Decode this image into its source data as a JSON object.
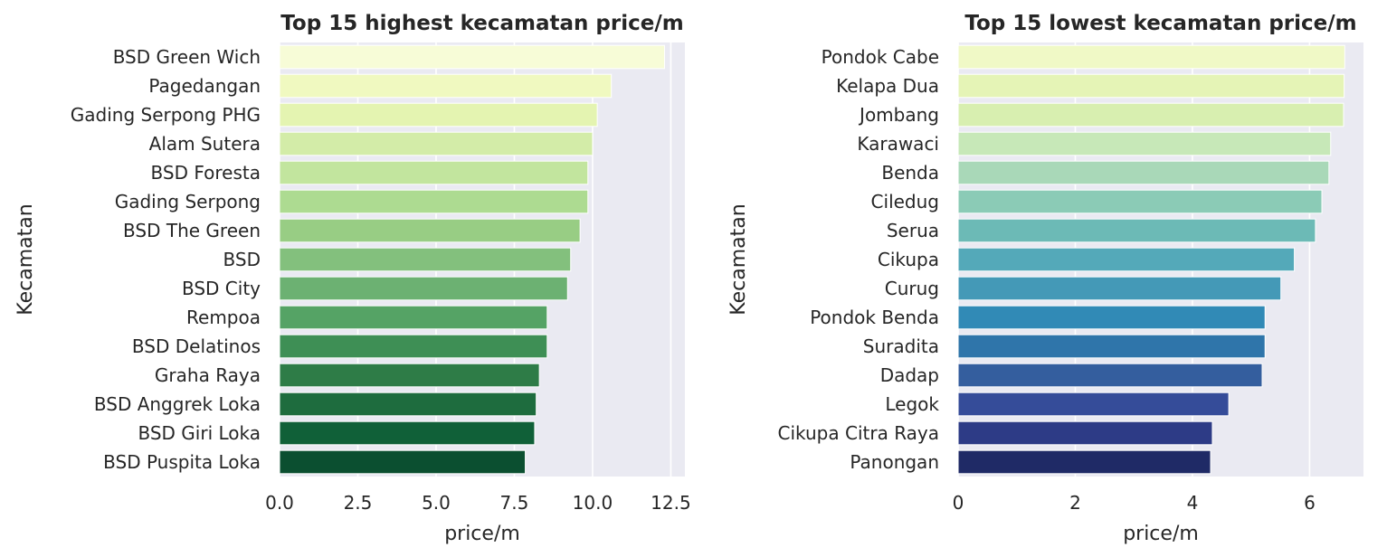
{
  "chart_data": [
    {
      "type": "bar",
      "orientation": "horizontal",
      "title": "Top 15 highest kecamatan price/m",
      "xlabel": "price/m",
      "ylabel": "Kecamatan",
      "xlim": [
        0,
        12.95
      ],
      "xticks": [
        0,
        2.5,
        5,
        7.5,
        10,
        12.5
      ],
      "xtick_labels": [
        "0.0",
        "2.5",
        "5.0",
        "7.5",
        "10.0",
        "12.5"
      ],
      "grid": true,
      "categories": [
        "BSD Green Wich",
        "Pagedangan",
        "Gading Serpong PHG",
        "Alam Sutera",
        "BSD Foresta",
        "Gading Serpong",
        "BSD The Green",
        "BSD",
        "BSD City",
        "Rempoa",
        "BSD Delatinos",
        "Graha Raya",
        "BSD Anggrek Loka",
        "BSD Giri Loka",
        "BSD Puspita Loka"
      ],
      "values": [
        12.3,
        10.6,
        10.15,
        10.0,
        9.85,
        9.85,
        9.6,
        9.3,
        9.2,
        8.55,
        8.55,
        8.3,
        8.2,
        8.15,
        7.85
      ],
      "colors": [
        "#f7fcd7",
        "#f0f9c0",
        "#e4f4b1",
        "#d3eca8",
        "#c2e59e",
        "#addb91",
        "#98cd84",
        "#83c07d",
        "#6cb172",
        "#55a365",
        "#3e8f55",
        "#2e7c47",
        "#1e6c3e",
        "#106038",
        "#0b4f30"
      ]
    },
    {
      "type": "bar",
      "orientation": "horizontal",
      "title": "Top 15 lowest kecamatan price/m",
      "xlabel": "price/m",
      "ylabel": "Kecamatan",
      "xlim": [
        0,
        6.92
      ],
      "xticks": [
        0,
        2,
        4,
        6
      ],
      "xtick_labels": [
        "0",
        "2",
        "4",
        "6"
      ],
      "grid": true,
      "categories": [
        "Pondok Cabe",
        "Kelapa Dua",
        "Jombang",
        "Karawaci",
        "Benda",
        "Ciledug",
        "Serua",
        "Cikupa",
        "Curug",
        "Pondok Benda",
        "Suradita",
        "Dadap",
        "Legok",
        "Cikupa Citra Raya",
        "Panongan"
      ],
      "values": [
        6.6,
        6.59,
        6.58,
        6.36,
        6.33,
        6.21,
        6.1,
        5.74,
        5.51,
        5.24,
        5.24,
        5.19,
        4.62,
        4.34,
        4.31
      ],
      "colors": [
        "#f0f9c6",
        "#e5f4b6",
        "#d8efb0",
        "#c7e8b8",
        "#a9d8b8",
        "#8bcbb6",
        "#6cbab6",
        "#54a9b9",
        "#4499b7",
        "#318ab6",
        "#2f75aa",
        "#345e9e",
        "#354c99",
        "#2d3b86",
        "#1f2a66"
      ]
    }
  ]
}
